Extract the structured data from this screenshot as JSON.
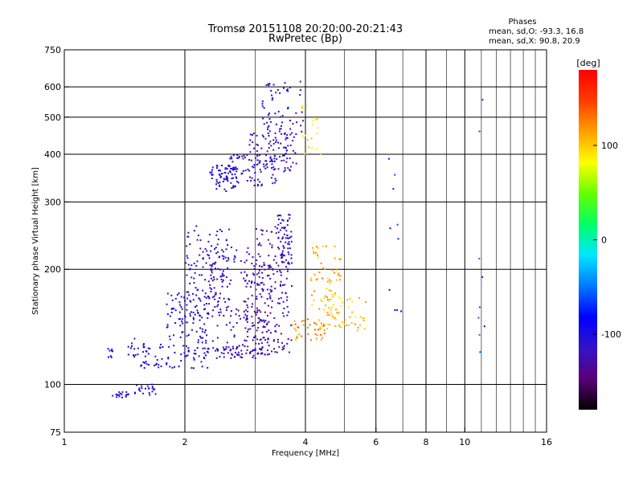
{
  "chart_data": {
    "type": "scatter",
    "title": "Tromsø 20151108 20:20:00-20:21:43",
    "subtitle": "RwPretec (Bp)",
    "xlabel": "Frequency [MHz]",
    "ylabel": "Stationary phase Virtual Height [km]",
    "x_scale": "log",
    "y_scale": "log",
    "xlim": [
      1,
      16
    ],
    "ylim": [
      75,
      750
    ],
    "x_ticks": [
      1,
      2,
      4,
      6,
      8,
      10,
      16
    ],
    "y_ticks": [
      75,
      100,
      200,
      300,
      400,
      500,
      600,
      750
    ],
    "x_gridlines": [
      2,
      4,
      6,
      8,
      10
    ],
    "y_gridlines": [
      100,
      200,
      300,
      400,
      500,
      600
    ],
    "stats": {
      "heading": "Phases",
      "o_line": "mean, sd,O:  -93.3, 16.8",
      "x_line": "mean, sd,X:  90.8, 20.9"
    },
    "colorbar": {
      "label": "[deg]",
      "range": [
        -180,
        180
      ],
      "ticks": [
        100,
        0,
        -100
      ],
      "stops": [
        "#000000",
        "#5a0078",
        "#3214c8",
        "#0000ff",
        "#0078ff",
        "#00e6ff",
        "#00ff64",
        "#64ff00",
        "#ffff00",
        "#ffa000",
        "#ff3c00",
        "#ff0000"
      ]
    },
    "series": [
      {
        "values_note": "",
        "clusters": [
          {
            "x": [
              1.28,
              1.32
            ],
            "y": [
              116,
              125
            ],
            "phase": -100,
            "n": 8
          },
          {
            "x": [
              1.32,
              1.45
            ],
            "y": [
              92,
              97
            ],
            "phase": -105,
            "n": 18
          },
          {
            "x": [
              1.5,
              1.7
            ],
            "y": [
              93,
              100
            ],
            "phase": -105,
            "n": 22
          },
          {
            "x": [
              1.42,
              1.65
            ],
            "y": [
              118,
              132
            ],
            "phase": -110,
            "n": 20
          },
          {
            "x": [
              1.55,
              2.3
            ],
            "y": [
              110,
              128
            ],
            "phase": -100,
            "n": 70
          },
          {
            "x": [
              1.8,
              2.3
            ],
            "y": [
              128,
              175
            ],
            "phase": -105,
            "n": 90
          },
          {
            "x": [
              2.0,
              2.6
            ],
            "y": [
              150,
              260
            ],
            "phase": -110,
            "n": 120
          },
          {
            "x": [
              2.3,
              3.0
            ],
            "y": [
              120,
              230
            ],
            "phase": -115,
            "n": 110
          },
          {
            "x": [
              2.4,
              3.3
            ],
            "y": [
              117,
              126
            ],
            "phase": -120,
            "n": 60
          },
          {
            "x": [
              2.8,
              3.3
            ],
            "y": [
              130,
              210
            ],
            "phase": -125,
            "n": 90
          },
          {
            "x": [
              3.0,
              3.7
            ],
            "y": [
              120,
              260
            ],
            "phase": -120,
            "n": 150
          },
          {
            "x": [
              3.4,
              3.7
            ],
            "y": [
              200,
              280
            ],
            "phase": -115,
            "n": 50
          },
          {
            "x": [
              2.3,
              2.7
            ],
            "y": [
              320,
              375
            ],
            "phase": -105,
            "n": 70
          },
          {
            "x": [
              2.5,
              3.4
            ],
            "y": [
              330,
              400
            ],
            "phase": -110,
            "n": 70
          },
          {
            "x": [
              2.9,
              3.8
            ],
            "y": [
              360,
              460
            ],
            "phase": -115,
            "n": 80
          },
          {
            "x": [
              3.1,
              4.0
            ],
            "y": [
              420,
              620
            ],
            "phase": -110,
            "n": 70
          },
          {
            "x": [
              3.7,
              4.5
            ],
            "y": [
              130,
              150
            ],
            "phase": 120,
            "n": 40
          },
          {
            "x": [
              4.1,
              4.9
            ],
            "y": [
              150,
              230
            ],
            "phase": 110,
            "n": 70
          },
          {
            "x": [
              4.3,
              5.7
            ],
            "y": [
              138,
              170
            ],
            "phase": 100,
            "n": 50
          },
          {
            "x": [
              3.9,
              4.4
            ],
            "y": [
              380,
              560
            ],
            "phase": 95,
            "n": 20
          },
          {
            "x": [
              6.4,
              7.0
            ],
            "y": [
              140,
              400
            ],
            "phase": -80,
            "n": 10
          },
          {
            "x": [
              10.8,
              11.2
            ],
            "y": [
              120,
              640
            ],
            "phase": -60,
            "n": 10
          }
        ]
      }
    ]
  }
}
